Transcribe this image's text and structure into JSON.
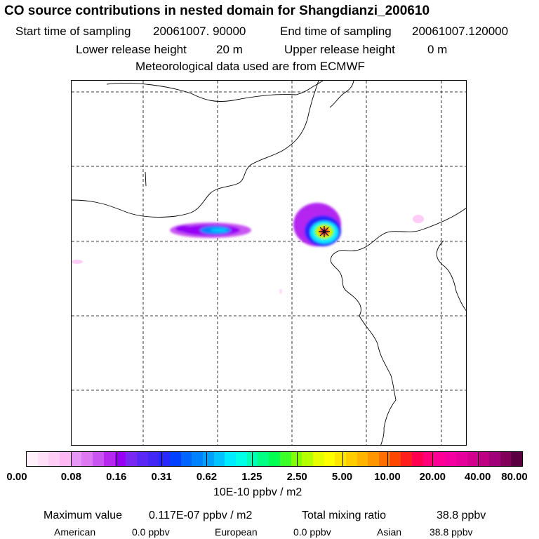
{
  "header": {
    "title": "CO  source contributions in nested domain for Shangdianzi_200610",
    "start_label": "Start time of sampling",
    "start_value": "20061007. 90000",
    "end_label": "End time of sampling",
    "end_value": "20061007.120000",
    "lower_label": "Lower release height",
    "lower_value": "20 m",
    "upper_label": "Upper release height",
    "upper_value": "0 m",
    "met_note": "Meteorological data used are from ECMWF"
  },
  "colorbar": {
    "colors": [
      "#fff0fb",
      "#ffe0f8",
      "#ffcdf5",
      "#ffb8f2",
      "#e696f5",
      "#dc78f0",
      "#c855f0",
      "#b428f0",
      "#9600f5",
      "#7828f0",
      "#5a28f5",
      "#4128f5",
      "#2828ff",
      "#0041ff",
      "#0064ff",
      "#0082ff",
      "#00a0ff",
      "#00c3ff",
      "#00ebff",
      "#00ffe6",
      "#00ffb4",
      "#00ff82",
      "#00ff50",
      "#3cff28",
      "#82ff00",
      "#b4ff00",
      "#e6ff00",
      "#ffff00",
      "#ffe600",
      "#ffcd00",
      "#ffb400",
      "#ff9600",
      "#ff6e00",
      "#ff4600",
      "#ff1e1e",
      "#ff0050",
      "#ff0078",
      "#ff0096",
      "#f500a0",
      "#e6009b",
      "#d2008c",
      "#be0082",
      "#a00078",
      "#82005a",
      "#5a0041"
    ],
    "ticks": [
      "0.00",
      "0.08",
      "0.16",
      "0.31",
      "0.62",
      "1.25",
      "2.50",
      "5.00",
      "10.00",
      "20.00",
      "40.00",
      "80.00"
    ],
    "units": "10E-10 ppbv / m2"
  },
  "summary": {
    "max_label": "Maximum value",
    "max_value": "0.117E-07 ppbv / m2",
    "total_label": "Total mixing ratio",
    "total_value": "38.8 ppbv",
    "regions": [
      {
        "name": "American",
        "value": "0.0 ppbv"
      },
      {
        "name": "European",
        "value": "0.0 ppbv"
      },
      {
        "name": "Asian",
        "value": "38.8 ppbv"
      }
    ]
  },
  "map": {
    "receptor_marker": "star-marker-icon"
  }
}
